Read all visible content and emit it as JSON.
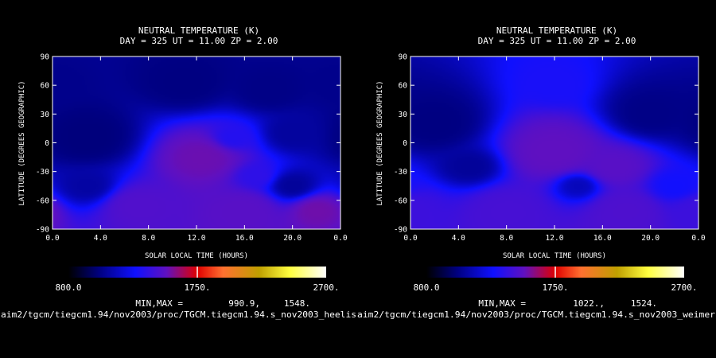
{
  "chart_data": [
    {
      "type": "heatmap",
      "title": "NEUTRAL TEMPERATURE (K)",
      "subtitle": "DAY = 325   UT = 11.00   ZP =    2.00",
      "xlabel": "SOLAR LOCAL TIME (HOURS)",
      "ylabel": "LATITUDE (DEGREES GEOGRAPHIC)",
      "xlim": [
        0,
        24
      ],
      "ylim": [
        -90,
        90
      ],
      "x_ticks": [
        "0.0",
        "4.0",
        "8.0",
        "12.0",
        "16.0",
        "20.0",
        "0.0"
      ],
      "y_ticks": [
        "90",
        "60",
        "30",
        "0",
        "-30",
        "-60",
        "-90"
      ],
      "colorbar": {
        "min_label": "800.0",
        "mid_label": "1750.",
        "max_label": "2700.",
        "min": 800,
        "max": 2700
      },
      "minmax_label": "MIN,MAX =",
      "min_value": "990.9,",
      "max_value": "1548.",
      "footer": "aim2/tgcm/tiegcm1.94/nov2003/proc/TGCM.tiegcm1.94.s_nov2003_heelis",
      "blobs": [
        {
          "lt": 3,
          "lat": 5,
          "t": 1020,
          "s": 3.5
        },
        {
          "lt": 11,
          "lat": 62,
          "t": 1030,
          "s": 3.0
        },
        {
          "lt": 18,
          "lat": 55,
          "t": 1040,
          "s": 2.5
        },
        {
          "lt": 20,
          "lat": 10,
          "t": 1090,
          "s": 2.3
        },
        {
          "lt": 0,
          "lat": 60,
          "t": 1050,
          "s": 2.2
        },
        {
          "lt": 12.5,
          "lat": -15,
          "t": 1540,
          "s": 3.5
        },
        {
          "lt": 7,
          "lat": -65,
          "t": 1480,
          "s": 3.2
        },
        {
          "lt": 16,
          "lat": -70,
          "t": 1500,
          "s": 3.2
        },
        {
          "lt": 22,
          "lat": -70,
          "t": 1548,
          "s": 2.5
        },
        {
          "lt": 17,
          "lat": -35,
          "t": 1380,
          "s": 2.0
        },
        {
          "lt": 20,
          "lat": -45,
          "t": 1080,
          "s": 2.2
        },
        {
          "lt": 3,
          "lat": -45,
          "t": 1100,
          "s": 2.5
        },
        {
          "lt": 15,
          "lat": 5,
          "t": 1350,
          "s": 2.0
        }
      ]
    },
    {
      "type": "heatmap",
      "title": "NEUTRAL TEMPERATURE (K)",
      "subtitle": "DAY = 325   UT = 11.00   ZP =    2.00",
      "xlabel": "SOLAR LOCAL TIME (HOURS)",
      "ylabel": "LATITUDE (DEGREES GEOGRAPHIC)",
      "xlim": [
        0,
        24
      ],
      "ylim": [
        -90,
        90
      ],
      "x_ticks": [
        "0.0",
        "4.0",
        "8.0",
        "12.0",
        "16.0",
        "20.0",
        "0.0"
      ],
      "y_ticks": [
        "90",
        "60",
        "30",
        "0",
        "-30",
        "-60",
        "-90"
      ],
      "colorbar": {
        "min_label": "800.0",
        "mid_label": "1750.",
        "max_label": "2700.",
        "min": 800,
        "max": 2700
      },
      "minmax_label": "MIN,MAX =",
      "min_value": "1022.,",
      "max_value": "1524.",
      "footer": "aim2/tgcm/tiegcm1.94/nov2003/proc/TGCM.tiegcm1.94.s_nov2003_weimer",
      "blobs": [
        {
          "lt": 2,
          "lat": 20,
          "t": 1030,
          "s": 3.0
        },
        {
          "lt": 20,
          "lat": 30,
          "t": 1040,
          "s": 2.8
        },
        {
          "lt": 5,
          "lat": -25,
          "t": 1080,
          "s": 2.2
        },
        {
          "lt": 12,
          "lat": 60,
          "t": 1320,
          "s": 2.0
        },
        {
          "lt": 12,
          "lat": -10,
          "t": 1520,
          "s": 3.5
        },
        {
          "lt": 17,
          "lat": -25,
          "t": 1500,
          "s": 2.8
        },
        {
          "lt": 8,
          "lat": -70,
          "t": 1450,
          "s": 3.0
        },
        {
          "lt": 18,
          "lat": -70,
          "t": 1470,
          "s": 3.0
        },
        {
          "lt": 22,
          "lat": -45,
          "t": 1300,
          "s": 2.2
        },
        {
          "lt": 14,
          "lat": -45,
          "t": 1150,
          "s": 1.8
        },
        {
          "lt": 0,
          "lat": -70,
          "t": 1420,
          "s": 2.5
        }
      ]
    }
  ]
}
